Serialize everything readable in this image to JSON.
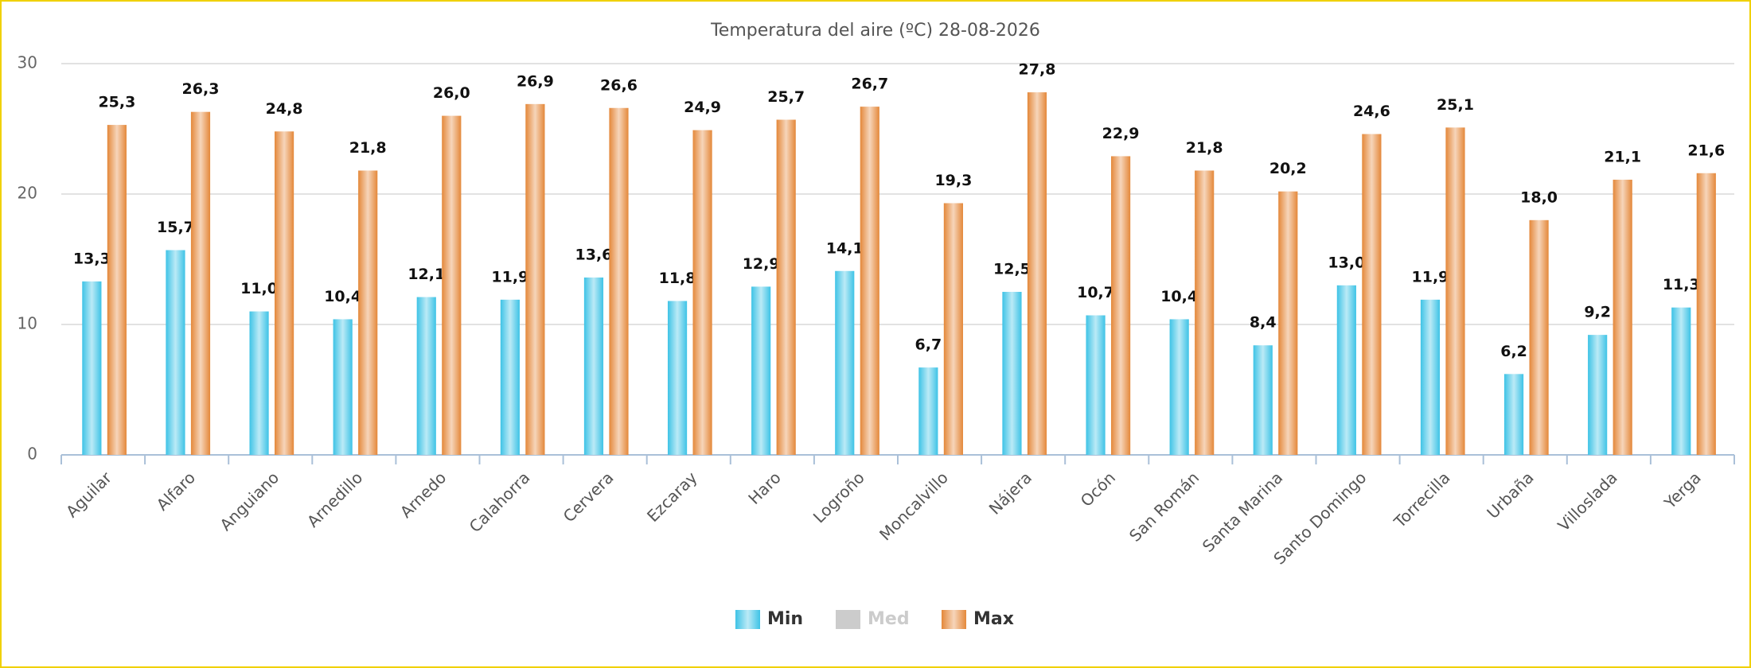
{
  "chart_data": {
    "type": "bar",
    "title": "Temperatura del aire (ºC) 28-08-2026",
    "categories": [
      "Aguilar",
      "Alfaro",
      "Anguiano",
      "Arnedillo",
      "Arnedo",
      "Calahorra",
      "Cervera",
      "Ezcaray",
      "Haro",
      "Logroño",
      "Moncalvillo",
      "Nájera",
      "Ocón",
      "San Román",
      "Santa Marina",
      "Santo Domingo",
      "Torrecilla",
      "Urbaña",
      "Villoslada",
      "Yerga"
    ],
    "series": [
      {
        "name": "Min",
        "color": "#3ec3e6",
        "values": [
          13.3,
          15.7,
          11.0,
          10.4,
          12.1,
          11.9,
          13.6,
          11.8,
          12.9,
          14.1,
          6.7,
          12.5,
          10.7,
          10.4,
          8.4,
          13.0,
          11.9,
          6.2,
          9.2,
          11.3
        ],
        "value_labels": [
          "13,3",
          "15,7",
          "11,0",
          "10,4",
          "12,1",
          "11,9",
          "13,6",
          "11,8",
          "12,9",
          "14,1",
          "6,7",
          "12,5",
          "10,7",
          "10,4",
          "8,4",
          "13,0",
          "11,9",
          "6,2",
          "9,2",
          "11,3"
        ]
      },
      {
        "name": "Med",
        "color": "#cccccc",
        "hidden": true,
        "values": [
          null,
          null,
          null,
          null,
          null,
          null,
          null,
          null,
          null,
          null,
          null,
          null,
          null,
          null,
          null,
          null,
          null,
          null,
          null,
          null
        ]
      },
      {
        "name": "Max",
        "color": "#e4883a",
        "values": [
          25.3,
          26.3,
          24.8,
          21.8,
          26.0,
          26.9,
          26.6,
          24.9,
          25.7,
          26.7,
          19.3,
          27.8,
          22.9,
          21.8,
          20.2,
          24.6,
          25.1,
          18.0,
          21.1,
          21.6
        ],
        "value_labels": [
          "25,3",
          "26,3",
          "24,8",
          "21,8",
          "26,0",
          "26,9",
          "26,6",
          "24,9",
          "25,7",
          "26,7",
          "19,3",
          "27,8",
          "22,9",
          "21,8",
          "20,2",
          "24,6",
          "25,1",
          "18,0",
          "21,1",
          "21,6"
        ]
      }
    ],
    "ylim": [
      0,
      30
    ],
    "yticks": [
      0,
      10,
      20,
      30
    ],
    "grid": true
  }
}
